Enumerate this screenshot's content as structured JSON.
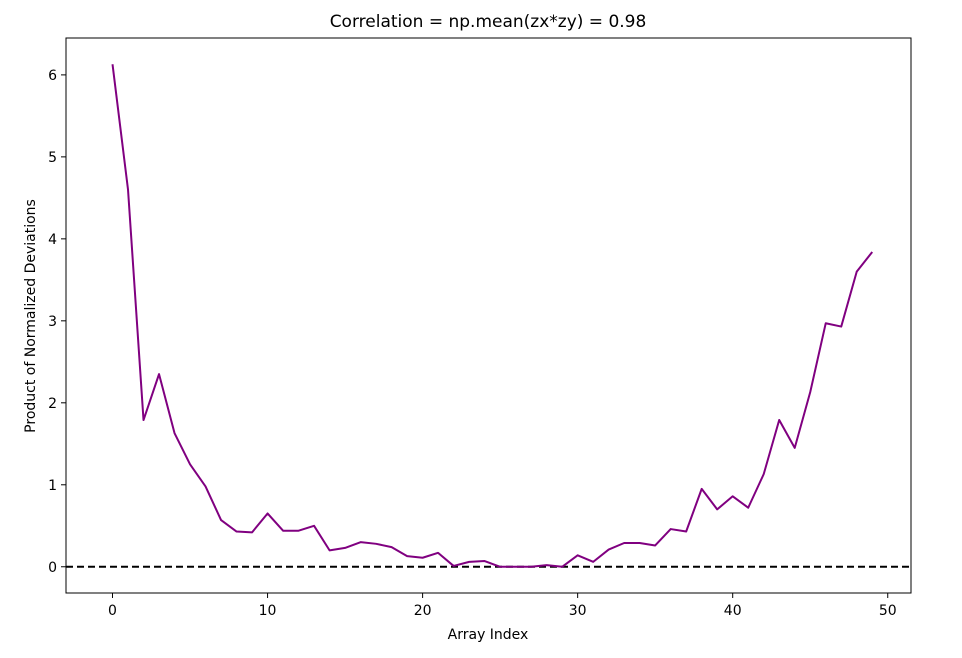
{
  "chart_data": {
    "type": "line",
    "title": "Correlation = np.mean(zx*zy) = 0.98",
    "xlabel": "Array Index",
    "ylabel": "Product of Normalized Deviations",
    "xlim": [
      -3,
      51.5
    ],
    "ylim": [
      -0.32,
      6.45
    ],
    "xticks": [
      0,
      10,
      20,
      30,
      40,
      50
    ],
    "yticks": [
      0,
      1,
      2,
      3,
      4,
      5,
      6
    ],
    "grid": false,
    "line_color": "#800080",
    "reference_line": {
      "y": 0,
      "style": "dashed",
      "color": "#000000"
    },
    "x": [
      0,
      1,
      2,
      3,
      4,
      5,
      6,
      7,
      8,
      9,
      10,
      11,
      12,
      13,
      14,
      15,
      16,
      17,
      18,
      19,
      20,
      21,
      22,
      23,
      24,
      25,
      26,
      27,
      28,
      29,
      30,
      31,
      32,
      33,
      34,
      35,
      36,
      37,
      38,
      39,
      40,
      41,
      42,
      43,
      44,
      45,
      46,
      47,
      48,
      49
    ],
    "values": [
      6.13,
      4.6,
      1.79,
      2.35,
      1.63,
      1.25,
      0.98,
      0.57,
      0.43,
      0.42,
      0.65,
      0.44,
      0.44,
      0.5,
      0.2,
      0.23,
      0.3,
      0.28,
      0.24,
      0.13,
      0.11,
      0.17,
      0.01,
      0.06,
      0.07,
      0.0,
      0.0,
      0.0,
      0.02,
      0.0,
      0.14,
      0.06,
      0.21,
      0.29,
      0.29,
      0.26,
      0.46,
      0.43,
      0.95,
      0.7,
      0.86,
      0.72,
      1.13,
      1.79,
      1.45,
      2.13,
      2.97,
      2.93,
      3.6,
      3.84
    ]
  }
}
